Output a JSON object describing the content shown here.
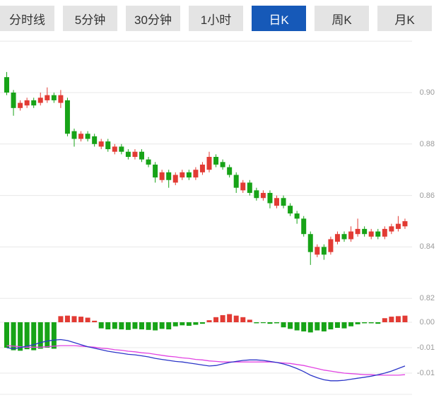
{
  "tabbar": {
    "tabs": [
      {
        "label": "分时线",
        "selected": false
      },
      {
        "label": "5分钟",
        "selected": false
      },
      {
        "label": "30分钟",
        "selected": false
      },
      {
        "label": "1小时",
        "selected": false
      },
      {
        "label": "日K",
        "selected": true
      },
      {
        "label": "周K",
        "selected": false
      },
      {
        "label": "月K",
        "selected": false
      }
    ]
  },
  "axes": {
    "price_labels": [
      "0.90",
      "0.88",
      "0.86",
      "0.84",
      "0.82"
    ],
    "macd_labels": [
      "0.00",
      "-0.01",
      "-0.01"
    ]
  },
  "colors": {
    "up": "#e23b34",
    "down": "#17a317",
    "dif_line": "#2b35c8",
    "dea_line": "#e243e2",
    "grid": "#e8e8e8",
    "axis_text": "#9a9a9a",
    "tab_active_bg": "#1659b8",
    "tab_active_text": "#ffffff"
  },
  "chart_data": {
    "type": "candlestick+macd",
    "title": "",
    "price_ticks": [
      0.9,
      0.88,
      0.86,
      0.84,
      0.82
    ],
    "price_axis_range": [
      0.82,
      0.92
    ],
    "macd_ticks": [
      0,
      -0.005,
      -0.01
    ],
    "candles": {
      "ohlc": [
        [
          0.906,
          0.908,
          0.899,
          0.9
        ],
        [
          0.9,
          0.901,
          0.891,
          0.894
        ],
        [
          0.894,
          0.897,
          0.893,
          0.896
        ],
        [
          0.895,
          0.898,
          0.894,
          0.897
        ],
        [
          0.897,
          0.898,
          0.894,
          0.895
        ],
        [
          0.896,
          0.9,
          0.895,
          0.898
        ],
        [
          0.897,
          0.902,
          0.896,
          0.899
        ],
        [
          0.899,
          0.9,
          0.896,
          0.897
        ],
        [
          0.896,
          0.901,
          0.894,
          0.899
        ],
        [
          0.897,
          0.898,
          0.883,
          0.884
        ],
        [
          0.885,
          0.886,
          0.879,
          0.882
        ],
        [
          0.882,
          0.885,
          0.881,
          0.884
        ],
        [
          0.884,
          0.885,
          0.881,
          0.882
        ],
        [
          0.883,
          0.884,
          0.879,
          0.88
        ],
        [
          0.879,
          0.882,
          0.878,
          0.881
        ],
        [
          0.881,
          0.882,
          0.877,
          0.878
        ],
        [
          0.877,
          0.88,
          0.876,
          0.879
        ],
        [
          0.879,
          0.88,
          0.876,
          0.877
        ],
        [
          0.877,
          0.878,
          0.874,
          0.875
        ],
        [
          0.875,
          0.878,
          0.874,
          0.877
        ],
        [
          0.877,
          0.878,
          0.873,
          0.874
        ],
        [
          0.874,
          0.875,
          0.871,
          0.872
        ],
        [
          0.872,
          0.873,
          0.865,
          0.867
        ],
        [
          0.866,
          0.87,
          0.865,
          0.869
        ],
        [
          0.869,
          0.87,
          0.863,
          0.866
        ],
        [
          0.865,
          0.869,
          0.864,
          0.868
        ],
        [
          0.867,
          0.87,
          0.866,
          0.869
        ],
        [
          0.869,
          0.87,
          0.866,
          0.867
        ],
        [
          0.867,
          0.871,
          0.866,
          0.87
        ],
        [
          0.869,
          0.873,
          0.868,
          0.872
        ],
        [
          0.87,
          0.877,
          0.869,
          0.875
        ],
        [
          0.875,
          0.876,
          0.871,
          0.872
        ],
        [
          0.873,
          0.874,
          0.87,
          0.871
        ],
        [
          0.871,
          0.872,
          0.867,
          0.868
        ],
        [
          0.868,
          0.869,
          0.861,
          0.863
        ],
        [
          0.862,
          0.866,
          0.861,
          0.865
        ],
        [
          0.865,
          0.866,
          0.86,
          0.861
        ],
        [
          0.862,
          0.863,
          0.858,
          0.859
        ],
        [
          0.859,
          0.862,
          0.858,
          0.861
        ],
        [
          0.861,
          0.862,
          0.855,
          0.857
        ],
        [
          0.856,
          0.86,
          0.855,
          0.859
        ],
        [
          0.859,
          0.86,
          0.855,
          0.856
        ],
        [
          0.856,
          0.857,
          0.852,
          0.853
        ],
        [
          0.853,
          0.854,
          0.849,
          0.851
        ],
        [
          0.851,
          0.852,
          0.844,
          0.845
        ],
        [
          0.845,
          0.846,
          0.833,
          0.838
        ],
        [
          0.837,
          0.841,
          0.836,
          0.84
        ],
        [
          0.84,
          0.841,
          0.835,
          0.837
        ],
        [
          0.838,
          0.844,
          0.837,
          0.843
        ],
        [
          0.842,
          0.846,
          0.841,
          0.845
        ],
        [
          0.845,
          0.846,
          0.842,
          0.843
        ],
        [
          0.843,
          0.848,
          0.842,
          0.846
        ],
        [
          0.845,
          0.851,
          0.844,
          0.847
        ],
        [
          0.847,
          0.848,
          0.844,
          0.845
        ],
        [
          0.844,
          0.847,
          0.843,
          0.846
        ],
        [
          0.846,
          0.847,
          0.843,
          0.844
        ],
        [
          0.844,
          0.848,
          0.843,
          0.847
        ],
        [
          0.846,
          0.849,
          0.845,
          0.848
        ],
        [
          0.847,
          0.852,
          0.846,
          0.849
        ],
        [
          0.848,
          0.851,
          0.847,
          0.85
        ]
      ]
    },
    "macd": {
      "histogram": [
        -0.005,
        -0.0055,
        -0.0056,
        -0.0053,
        -0.0055,
        -0.0052,
        -0.005,
        -0.0052,
        0.0012,
        0.0013,
        0.0012,
        0.0011,
        0.0009,
        0.0003,
        -0.0012,
        -0.0014,
        -0.0013,
        -0.0014,
        -0.0015,
        -0.0013,
        -0.0014,
        -0.0015,
        -0.0016,
        -0.0013,
        -0.0014,
        -0.0008,
        -0.0006,
        -0.0007,
        -0.0005,
        -0.0003,
        0.0004,
        0.001,
        0.0014,
        0.0016,
        0.0013,
        0.001,
        0.0005,
        -0.0002,
        -0.0001,
        -0.0003,
        -0.0002,
        -0.001,
        -0.0013,
        -0.0016,
        -0.0018,
        -0.002,
        -0.0016,
        -0.0018,
        -0.0014,
        -0.0011,
        -0.0012,
        -0.0008,
        -0.0004,
        -0.0002,
        -0.0002,
        -0.0003,
        0.0008,
        0.0011,
        0.0012,
        0.0013
      ],
      "dif": [
        -0.005,
        -0.0052,
        -0.005,
        -0.0047,
        -0.0044,
        -0.004,
        -0.0037,
        -0.0035,
        -0.0034,
        -0.0036,
        -0.004,
        -0.0044,
        -0.0048,
        -0.0051,
        -0.0054,
        -0.0057,
        -0.0059,
        -0.0061,
        -0.0063,
        -0.0064,
        -0.0066,
        -0.0068,
        -0.0071,
        -0.0073,
        -0.0075,
        -0.0077,
        -0.0078,
        -0.008,
        -0.0082,
        -0.0084,
        -0.0086,
        -0.0085,
        -0.0082,
        -0.0079,
        -0.0077,
        -0.0075,
        -0.0074,
        -0.0074,
        -0.0075,
        -0.0077,
        -0.0079,
        -0.0082,
        -0.0086,
        -0.0091,
        -0.0097,
        -0.0104,
        -0.0109,
        -0.0113,
        -0.0115,
        -0.0115,
        -0.0114,
        -0.0112,
        -0.011,
        -0.0108,
        -0.0106,
        -0.0103,
        -0.01,
        -0.0096,
        -0.0091,
        -0.0086
      ],
      "dea": [
        -0.0046,
        -0.0047,
        -0.0048,
        -0.0049,
        -0.0049,
        -0.0049,
        -0.0048,
        -0.0047,
        -0.0046,
        -0.0046,
        -0.0046,
        -0.0047,
        -0.0048,
        -0.0049,
        -0.0051,
        -0.0052,
        -0.0054,
        -0.0055,
        -0.0057,
        -0.0058,
        -0.006,
        -0.0061,
        -0.0063,
        -0.0065,
        -0.0067,
        -0.0068,
        -0.007,
        -0.0071,
        -0.0073,
        -0.0074,
        -0.0076,
        -0.0077,
        -0.0078,
        -0.0078,
        -0.0078,
        -0.0078,
        -0.0078,
        -0.0078,
        -0.0078,
        -0.0078,
        -0.0079,
        -0.008,
        -0.0081,
        -0.0083,
        -0.0085,
        -0.0088,
        -0.0091,
        -0.0094,
        -0.0096,
        -0.0098,
        -0.01,
        -0.0101,
        -0.0102,
        -0.0103,
        -0.0103,
        -0.0104,
        -0.0104,
        -0.0104,
        -0.0104,
        -0.0103
      ]
    }
  }
}
